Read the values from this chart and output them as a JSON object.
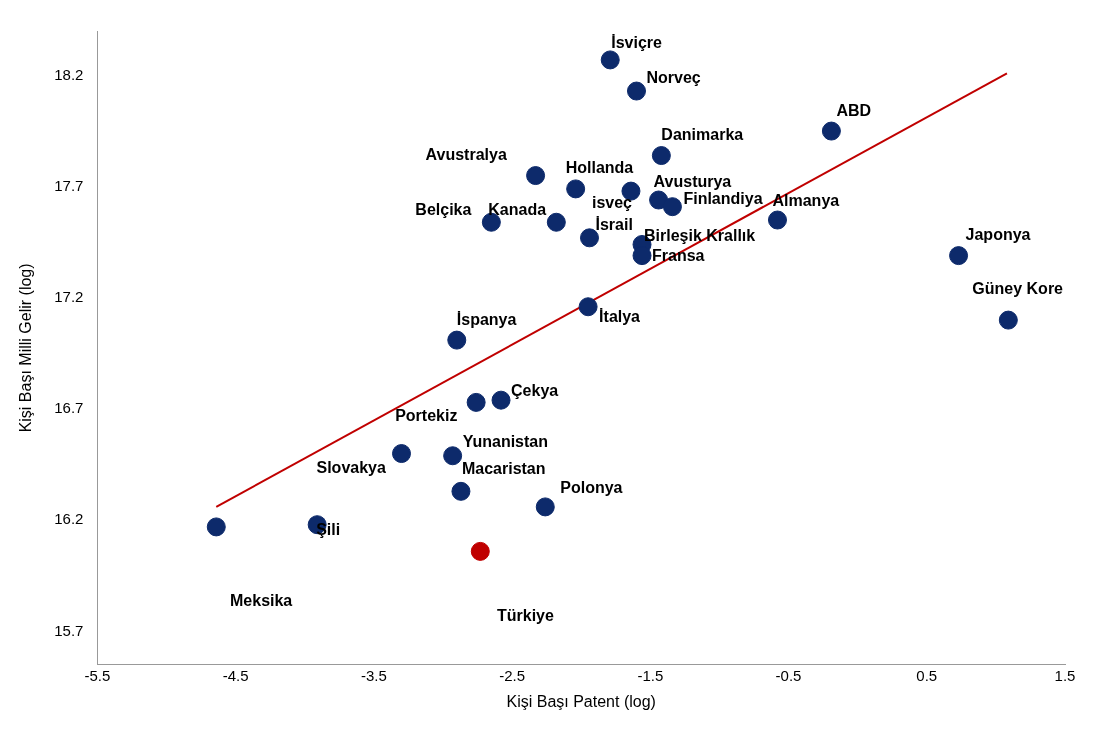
{
  "chart_data": {
    "type": "scatter",
    "xlabel": "Kişi Başı Patent (log)",
    "ylabel": "Kişi Başı Milli Gelir (log)",
    "xlim": [
      -5.5,
      1.5
    ],
    "xticks": [
      -5.5,
      -4.5,
      -3.5,
      -2.5,
      -1.5,
      -0.5,
      0.5,
      1.5
    ],
    "ylim": [
      15.55,
      18.4
    ],
    "yticks": [
      15.7,
      16.2,
      16.7,
      17.2,
      17.7,
      18.2
    ],
    "grid": false,
    "legend": false,
    "marker": "circle",
    "series": [
      {
        "color": "#0d2a6b",
        "x": [
          -4.64,
          -3.91,
          -3.3,
          -2.76,
          -2.58,
          -2.93,
          -2.87,
          -2.26,
          -2.9,
          -1.95,
          -2.65,
          -2.18,
          -2.33,
          -2.04,
          -1.94,
          -1.64,
          -1.44,
          -1.34,
          -1.42,
          -1.79,
          -1.6,
          -1.56,
          -1.56,
          -0.58,
          -0.19,
          0.73,
          1.09
        ],
        "values": [
          16.17,
          16.18,
          16.5,
          16.73,
          16.74,
          16.49,
          16.33,
          16.26,
          17.01,
          17.16,
          17.54,
          17.54,
          17.75,
          17.69,
          17.47,
          17.68,
          17.64,
          17.61,
          17.84,
          18.27,
          18.13,
          17.44,
          17.39,
          17.55,
          17.95,
          17.39,
          17.1
        ]
      },
      {
        "color": "#c00000",
        "x": [
          -2.73
        ],
        "values": [
          16.06
        ]
      },
      {
        "type": "line",
        "marker": "none",
        "color": "#c00000",
        "x": [
          -4.64,
          1.08
        ],
        "values": [
          16.26,
          18.21
        ]
      }
    ],
    "annotations": [
      {
        "text": "İsviçre",
        "x": -1.79,
        "y": 18.27
      },
      {
        "text": "Norveç",
        "x": -1.6,
        "y": 18.13
      },
      {
        "text": "ABD",
        "x": -0.19,
        "y": 17.95
      },
      {
        "text": "Danimarka",
        "x": -1.42,
        "y": 17.84
      },
      {
        "text": "Avustralya",
        "x": -2.33,
        "y": 17.75
      },
      {
        "text": "Hollanda",
        "x": -2.04,
        "y": 17.69
      },
      {
        "text": "Avusturya",
        "x": -1.44,
        "y": 17.64
      },
      {
        "text": "isveç",
        "x": -1.64,
        "y": 17.68
      },
      {
        "text": "Finlandiya",
        "x": -1.34,
        "y": 17.61
      },
      {
        "text": "Almanya",
        "x": -0.58,
        "y": 17.55
      },
      {
        "text": "Belçika",
        "x": -2.65,
        "y": 17.54
      },
      {
        "text": "Kanada",
        "x": -2.18,
        "y": 17.54
      },
      {
        "text": "İsrail",
        "x": -1.94,
        "y": 17.47
      },
      {
        "text": "Birleşik Krallık",
        "x": -1.56,
        "y": 17.44
      },
      {
        "text": "Fransa",
        "x": -1.56,
        "y": 17.39
      },
      {
        "text": "Japonya",
        "x": 0.73,
        "y": 17.39
      },
      {
        "text": "Güney Kore",
        "x": 1.09,
        "y": 17.1
      },
      {
        "text": "İtalya",
        "x": -1.95,
        "y": 17.16
      },
      {
        "text": "İspanya",
        "x": -2.9,
        "y": 17.01
      },
      {
        "text": "Çekya",
        "x": -2.58,
        "y": 16.74
      },
      {
        "text": "Portekiz",
        "x": -2.76,
        "y": 16.73
      },
      {
        "text": "Yunanistan",
        "x": -2.93,
        "y": 16.49
      },
      {
        "text": "Slovakya",
        "x": -3.3,
        "y": 16.5
      },
      {
        "text": "Macaristan",
        "x": -2.87,
        "y": 16.33
      },
      {
        "text": "Polonya",
        "x": -2.26,
        "y": 16.26
      },
      {
        "text": "Şili",
        "x": -3.91,
        "y": 16.18
      },
      "Meksika",
      "Türkiye"
    ]
  }
}
